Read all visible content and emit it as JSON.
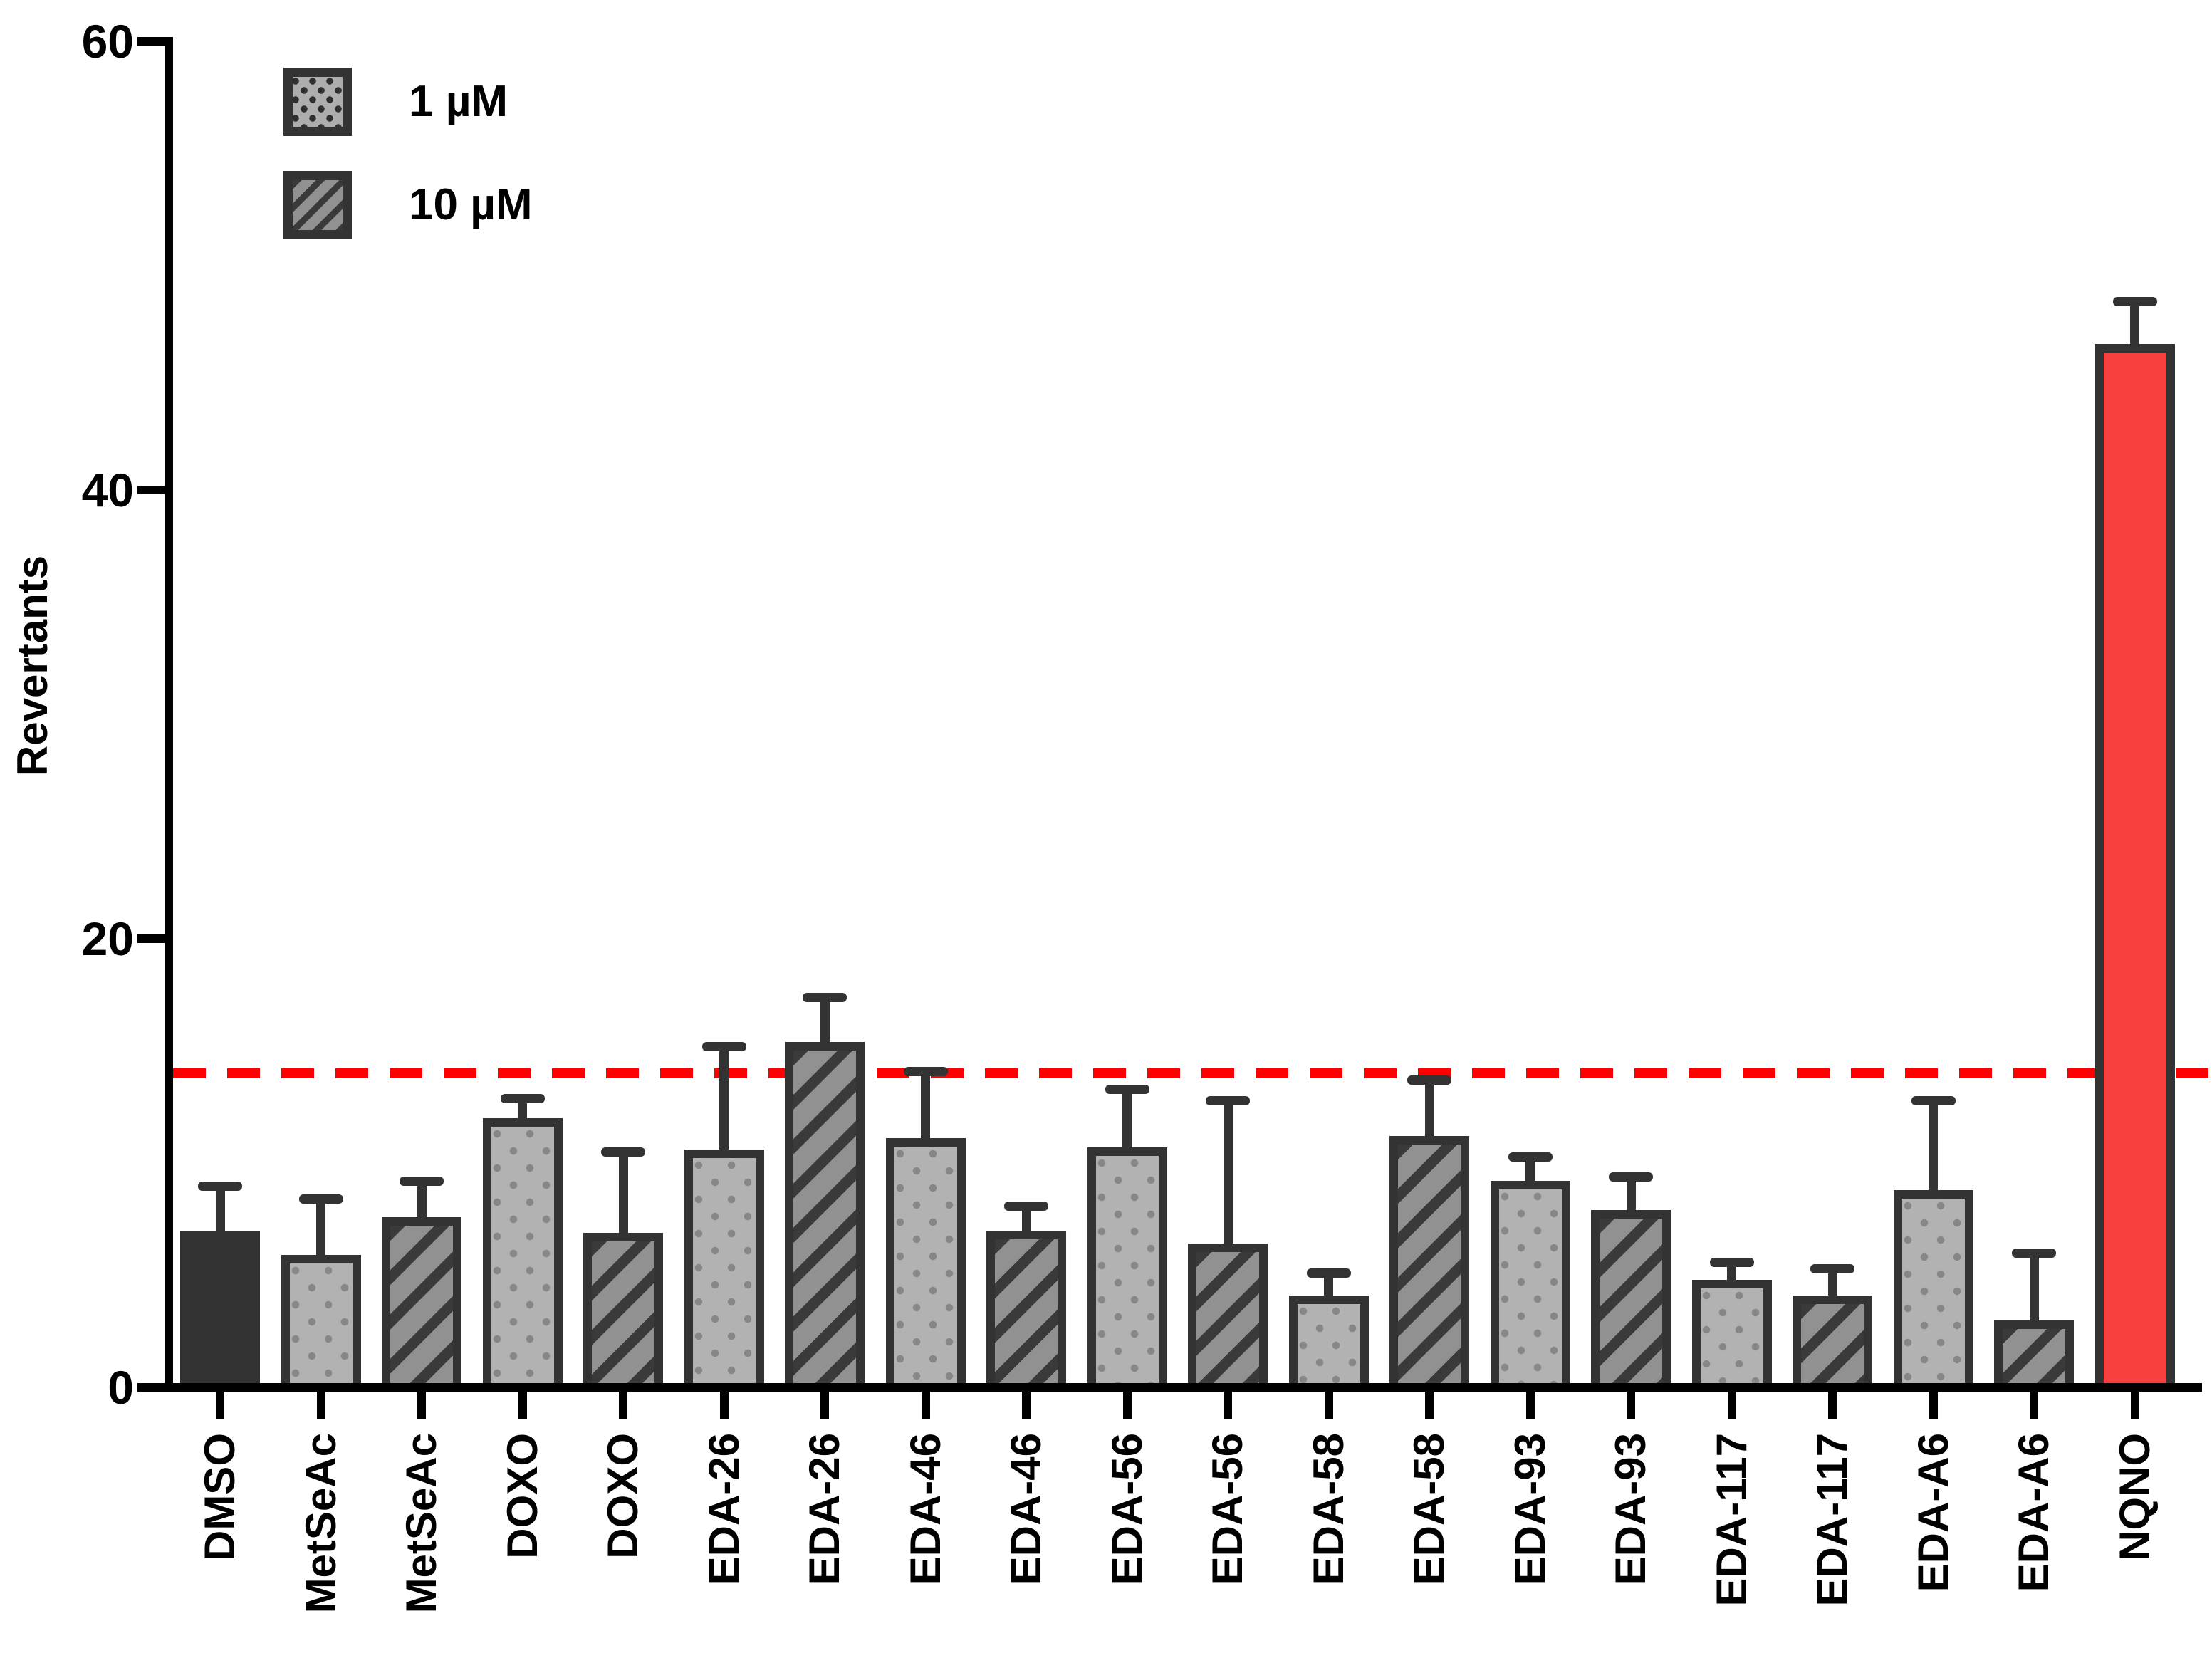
{
  "chart_data": {
    "type": "bar",
    "ylabel": "Revertants",
    "ylim": [
      0,
      60
    ],
    "yticks": [
      0,
      20,
      40,
      60
    ],
    "grid": false,
    "legend_position": "top-left",
    "legend": [
      {
        "label": "1 µM",
        "pattern": "dots"
      },
      {
        "label": "10 µM",
        "pattern": "stripes"
      }
    ],
    "threshold_line": {
      "value": 14,
      "color": "#FF0000",
      "style": "dashed"
    },
    "bars": [
      {
        "label": "DMSO",
        "group": "control",
        "value": 7.0,
        "error_top": 9.0,
        "pattern": "solid-dark"
      },
      {
        "label": "MetSeAc",
        "group": "1 µM",
        "value": 5.9,
        "error_top": 8.4,
        "pattern": "dots"
      },
      {
        "label": "MetSeAc",
        "group": "10 µM",
        "value": 7.6,
        "error_top": 9.2,
        "pattern": "stripes"
      },
      {
        "label": "DOXO",
        "group": "1 µM",
        "value": 12.0,
        "error_top": 12.9,
        "pattern": "dots"
      },
      {
        "label": "DOXO",
        "group": "10 µM",
        "value": 6.9,
        "error_top": 10.5,
        "pattern": "stripes"
      },
      {
        "label": "EDA-26",
        "group": "1 µM",
        "value": 10.6,
        "error_top": 15.2,
        "pattern": "dots"
      },
      {
        "label": "EDA-26",
        "group": "10 µM",
        "value": 15.4,
        "error_top": 17.4,
        "pattern": "stripes"
      },
      {
        "label": "EDA-46",
        "group": "1 µM",
        "value": 11.1,
        "error_top": 14.1,
        "pattern": "dots"
      },
      {
        "label": "EDA-46",
        "group": "10 µM",
        "value": 7.0,
        "error_top": 8.1,
        "pattern": "stripes"
      },
      {
        "label": "EDA-56",
        "group": "1 µM",
        "value": 10.7,
        "error_top": 13.3,
        "pattern": "dots"
      },
      {
        "label": "EDA-56",
        "group": "10 µM",
        "value": 6.4,
        "error_top": 12.8,
        "pattern": "stripes"
      },
      {
        "label": "EDA-58",
        "group": "1 µM",
        "value": 4.1,
        "error_top": 5.1,
        "pattern": "dots"
      },
      {
        "label": "EDA-58",
        "group": "10 µM",
        "value": 11.2,
        "error_top": 13.7,
        "pattern": "stripes"
      },
      {
        "label": "EDA-93",
        "group": "1 µM",
        "value": 9.2,
        "error_top": 10.3,
        "pattern": "dots"
      },
      {
        "label": "EDA-93",
        "group": "10 µM",
        "value": 7.9,
        "error_top": 9.4,
        "pattern": "stripes"
      },
      {
        "label": "EDA-117",
        "group": "1 µM",
        "value": 4.8,
        "error_top": 5.6,
        "pattern": "dots"
      },
      {
        "label": "EDA-117",
        "group": "10 µM",
        "value": 4.1,
        "error_top": 5.3,
        "pattern": "stripes"
      },
      {
        "label": "EDA-A6",
        "group": "1 µM",
        "value": 8.8,
        "error_top": 12.8,
        "pattern": "dots"
      },
      {
        "label": "EDA-A6",
        "group": "10 µM",
        "value": 3.0,
        "error_top": 6.0,
        "pattern": "stripes"
      },
      {
        "label": "NQNO",
        "group": "positive-control",
        "value": 46.5,
        "error_top": 48.4,
        "pattern": "solid-red"
      }
    ],
    "colors": {
      "bar_outline": "#333333",
      "solid_dark_fill": "#333333",
      "dots_fill": "#B2B2B2",
      "dots_dot": "#878787",
      "stripes_fill": "#919191",
      "stripes_stripe": "#3A3A3A",
      "positive_control_fill": "#F84040",
      "threshold_red": "#FF0000",
      "axis_black": "#000000"
    }
  }
}
